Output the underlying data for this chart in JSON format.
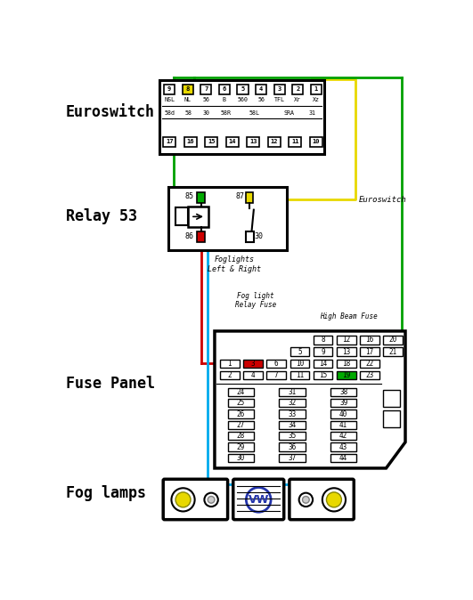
{
  "bg_color": "#ffffff",
  "labels": {
    "euroswitch": "Euroswitch",
    "relay53": "Relay 53",
    "fuse_panel": "Fuse Panel",
    "fog_lamps": "Fog lamps",
    "euroswitch_label": "Euroswitch",
    "foglights_label": "Foglights\nLeft & Right",
    "fog_fuse_label": "Fog light\nRelay Fuse",
    "high_beam_label": "High Beam Fuse"
  },
  "switch_top_pins": [
    "9",
    "8",
    "7",
    "6",
    "5",
    "4",
    "3",
    "2",
    "1"
  ],
  "switch_top_labels": [
    "NSL",
    "NL",
    "56",
    "B",
    "560",
    "56",
    "TFL",
    "Xr",
    "Xz"
  ],
  "switch_bot_labels": [
    "58d",
    "58",
    "30",
    "58R",
    "58L",
    "SRA",
    "31"
  ],
  "switch_bot_pins": [
    "17",
    "16",
    "15",
    "14",
    "13",
    "12",
    "11",
    "10"
  ],
  "yellow_pin_idx": 1,
  "wire_colors": {
    "yellow": "#e8d800",
    "green": "#00a000",
    "red": "#cc0000",
    "blue": "#00aaee"
  },
  "fuse_rows_bottom": [
    [
      "24",
      "31",
      "38"
    ],
    [
      "25",
      "32",
      "39"
    ],
    [
      "26",
      "33",
      "40"
    ],
    [
      "27",
      "34",
      "41"
    ],
    [
      "28",
      "35",
      "42"
    ],
    [
      "29",
      "36",
      "43"
    ],
    [
      "30",
      "37",
      "44"
    ]
  ]
}
